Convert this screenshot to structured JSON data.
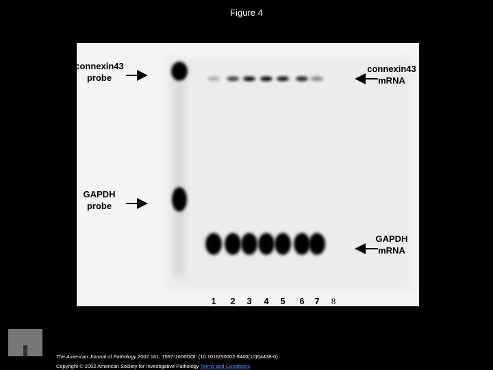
{
  "title": "Figure 4",
  "figure": {
    "left_labels": [
      [
        "connexin43",
        "probe"
      ],
      [
        "GAPDH",
        "probe"
      ]
    ],
    "right_labels": [
      [
        "connexin43",
        "mRNA"
      ],
      [
        "GAPDH",
        "mRNA"
      ]
    ],
    "lanes": [
      "1",
      "2",
      "3",
      "4",
      "5",
      "6",
      "7",
      "8"
    ]
  },
  "footer": {
    "logo": "ELSEVIER",
    "journal": "The American Journal of Pathology",
    "citation": " 2002 161, 1597-1606DOI: (10.1016/S0002-9440(10)64438-0)",
    "copyright": "Copyright © 2002 American Society for Investigative Pathology ",
    "link": "Terms and Conditions"
  }
}
